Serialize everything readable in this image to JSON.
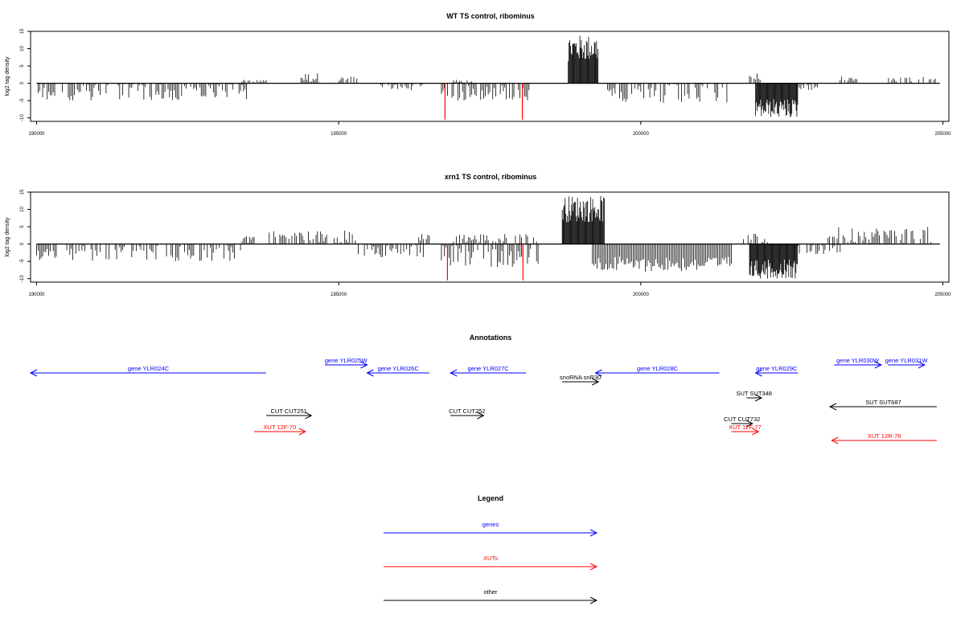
{
  "chart_data": [
    {
      "type": "bar",
      "title": "WT TS control, ribominus",
      "ylabel": "log2 tag density",
      "xlim": [
        189900,
        205100
      ],
      "ylim": [
        -11,
        15
      ],
      "xticks": [
        190000,
        195000,
        200000,
        205000
      ],
      "yticks": [
        15,
        10,
        5,
        0,
        -5,
        -10
      ],
      "positive_regions": [
        {
          "start": 193400,
          "end": 193800,
          "level": 1
        },
        {
          "start": 194300,
          "end": 194700,
          "level": 3
        },
        {
          "start": 194900,
          "end": 195300,
          "level": 2
        },
        {
          "start": 196900,
          "end": 197200,
          "level": 1
        },
        {
          "start": 198800,
          "end": 199300,
          "level": 14
        },
        {
          "start": 201800,
          "end": 202000,
          "level": 3
        },
        {
          "start": 203300,
          "end": 203600,
          "level": 2
        },
        {
          "start": 204100,
          "end": 204900,
          "level": 2
        }
      ],
      "negative_regions": [
        {
          "start": 190000,
          "end": 193500,
          "level": -5
        },
        {
          "start": 195700,
          "end": 196400,
          "level": -2
        },
        {
          "start": 196700,
          "end": 198200,
          "level": -5
        },
        {
          "start": 199400,
          "end": 201500,
          "level": -6
        },
        {
          "start": 201900,
          "end": 202600,
          "level": -10
        },
        {
          "start": 202600,
          "end": 203000,
          "level": -2
        }
      ],
      "red_markers": [
        {
          "x": 196760,
          "value": -10.5
        },
        {
          "x": 198040,
          "value": -10.5
        }
      ]
    },
    {
      "type": "bar",
      "title": "xrn1 TS control, ribominus",
      "ylabel": "log2 tag density",
      "xlim": [
        189900,
        205100
      ],
      "ylim": [
        -11,
        15
      ],
      "xticks": [
        190000,
        195000,
        200000,
        205000
      ],
      "yticks": [
        15,
        10,
        5,
        0,
        -5,
        -10
      ],
      "positive_regions": [
        {
          "start": 193400,
          "end": 193600,
          "level": 3
        },
        {
          "start": 193800,
          "end": 195300,
          "level": 4
        },
        {
          "start": 196300,
          "end": 196500,
          "level": 3
        },
        {
          "start": 196900,
          "end": 198300,
          "level": 3
        },
        {
          "start": 198700,
          "end": 199400,
          "level": 14
        },
        {
          "start": 201700,
          "end": 202100,
          "level": 3
        },
        {
          "start": 203100,
          "end": 204800,
          "level": 5
        }
      ],
      "negative_regions": [
        {
          "start": 190000,
          "end": 193400,
          "level": -5
        },
        {
          "start": 195300,
          "end": 196400,
          "level": -4
        },
        {
          "start": 196700,
          "end": 198300,
          "level": -7
        },
        {
          "start": 199200,
          "end": 201500,
          "level": -8
        },
        {
          "start": 201800,
          "end": 202600,
          "level": -10
        },
        {
          "start": 202600,
          "end": 203300,
          "level": -3
        }
      ],
      "red_markers": [
        {
          "x": 196800,
          "value": -10.5
        },
        {
          "x": 198050,
          "value": -10.5
        }
      ]
    }
  ],
  "annotations": {
    "title": "Annotations",
    "features": [
      {
        "label": "gene YLR024C",
        "class": "gene",
        "start": 189900,
        "end": 193800,
        "strand": "-",
        "row": 1
      },
      {
        "label": "gene YLR025W",
        "class": "gene",
        "start": 194770,
        "end": 195470,
        "strand": "+",
        "row": 0
      },
      {
        "label": "gene YLR026C",
        "class": "gene",
        "start": 195470,
        "end": 196500,
        "strand": "-",
        "row": 1
      },
      {
        "label": "gene YLR027C",
        "class": "gene",
        "start": 196850,
        "end": 198100,
        "strand": "-",
        "row": 1
      },
      {
        "label": "snoRNA snR30",
        "class": "other",
        "start": 198700,
        "end": 199300,
        "strand": "+",
        "row": 2
      },
      {
        "label": "gene YLR028C",
        "class": "gene",
        "start": 199250,
        "end": 201300,
        "strand": "-",
        "row": 1
      },
      {
        "label": "gene YLR029C",
        "class": "gene",
        "start": 201900,
        "end": 202600,
        "strand": "-",
        "row": 1
      },
      {
        "label": "gene YLR030W",
        "class": "gene",
        "start": 203200,
        "end": 203980,
        "strand": "+",
        "row": 0
      },
      {
        "label": "gene YLR031W",
        "class": "gene",
        "start": 204090,
        "end": 204700,
        "strand": "+",
        "row": 0
      },
      {
        "label": "SUT SUT348",
        "class": "other",
        "start": 201750,
        "end": 202000,
        "strand": "+",
        "row": 3
      },
      {
        "label": "SUT SUT687",
        "class": "other",
        "start": 203130,
        "end": 204900,
        "strand": "-",
        "row": 4
      },
      {
        "label": "CUT CUT251",
        "class": "other",
        "start": 193800,
        "end": 194550,
        "strand": "+",
        "row": 5
      },
      {
        "label": "CUT CUT252",
        "class": "other",
        "start": 196850,
        "end": 197400,
        "strand": "+",
        "row": 5
      },
      {
        "label": "CUT CUT732",
        "class": "other",
        "start": 201500,
        "end": 201850,
        "strand": "+",
        "row": 6
      },
      {
        "label": "XUT 12F-70",
        "class": "xut",
        "start": 193600,
        "end": 194450,
        "strand": "+",
        "row": 7
      },
      {
        "label": "XUT 12F-77",
        "class": "xut",
        "start": 201500,
        "end": 201950,
        "strand": "+",
        "row": 7
      },
      {
        "label": "XUT 12R-76",
        "class": "xut",
        "start": 203160,
        "end": 204900,
        "strand": "-",
        "row": 8
      }
    ]
  },
  "legend": {
    "title": "Legend",
    "entries": [
      {
        "label": "genes",
        "color": "#0000ff"
      },
      {
        "label": "XUTs",
        "color": "#ff0000"
      },
      {
        "label": "other",
        "color": "#000000"
      }
    ]
  },
  "colors": {
    "gene": "#0000ff",
    "xut": "#ff0000",
    "other": "#000000",
    "marker": "#ff0000"
  }
}
